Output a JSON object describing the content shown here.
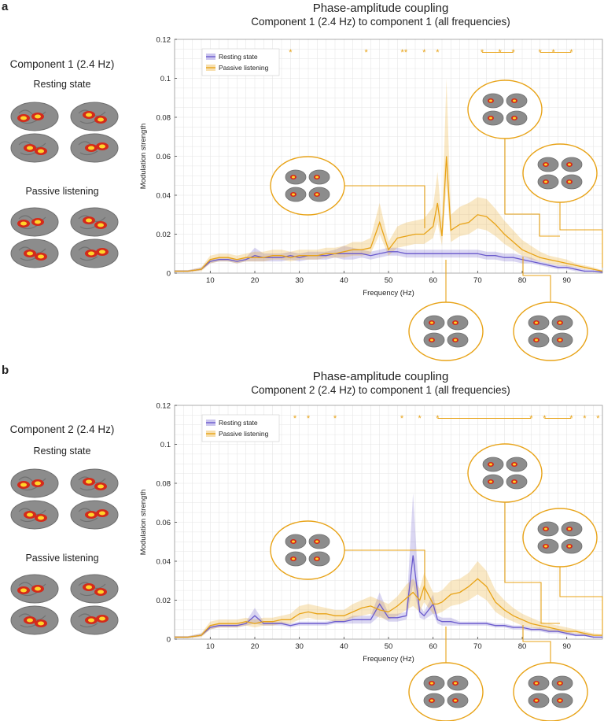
{
  "colors": {
    "resting": "#6a5acd",
    "passive": "#e8a317",
    "grid": "#e6e6e6"
  },
  "panels": [
    {
      "label": "a",
      "title": "Phase-amplitude coupling",
      "subtitle": "Component 1 (2.4 Hz) to component 1 (all frequencies)",
      "component_label": "Component 1 (2.4 Hz)",
      "cond_rest": "Resting state",
      "cond_passive": "Passive listening",
      "stars_text": [
        "*",
        "*",
        "*",
        "**",
        "*",
        "*",
        "*",
        "*",
        "*",
        "*",
        "*",
        "*"
      ]
    },
    {
      "label": "b",
      "title": "Phase-amplitude coupling",
      "subtitle": "Component 2 (2.4 Hz) to component 1 (all frequencies)",
      "component_label": "Component 2 (2.4 Hz)",
      "cond_rest": "Resting state",
      "cond_passive": "Passive listening",
      "stars_text": [
        "*",
        "*",
        "*",
        "*",
        "*",
        "*",
        "*",
        "*",
        "*",
        "*",
        "*"
      ]
    }
  ],
  "chart_data": [
    {
      "type": "line",
      "title": "Phase-amplitude coupling",
      "subtitle": "Component 1 (2.4 Hz) to component 1 (all frequencies)",
      "xlabel": "Frequency (Hz)",
      "ylabel": "Modulation strength",
      "xlim": [
        2,
        98
      ],
      "ylim": [
        0,
        0.12
      ],
      "xticks": [
        10,
        20,
        30,
        40,
        50,
        60,
        70,
        80,
        90
      ],
      "yticks": [
        0,
        0.02,
        0.04,
        0.06,
        0.08,
        0.1,
        0.12
      ],
      "ytick_labels": [
        "0",
        "0.02",
        "0.04",
        "0.06",
        "0.08",
        "0.1",
        "0.12"
      ],
      "grid": true,
      "legend": "top-left",
      "x": [
        2,
        5,
        8,
        10,
        12,
        14,
        16,
        18,
        20,
        22,
        24,
        26,
        28,
        30,
        32,
        34,
        36,
        38,
        40,
        42,
        44,
        46,
        48,
        50,
        52,
        54,
        56,
        58,
        60,
        61,
        62,
        63,
        64,
        66,
        68,
        70,
        72,
        74,
        76,
        78,
        80,
        82,
        84,
        86,
        88,
        90,
        92,
        94,
        96,
        98
      ],
      "series": [
        {
          "name": "Resting state",
          "values": [
            0.001,
            0.001,
            0.002,
            0.006,
            0.007,
            0.007,
            0.006,
            0.007,
            0.009,
            0.008,
            0.008,
            0.008,
            0.009,
            0.008,
            0.009,
            0.009,
            0.009,
            0.01,
            0.01,
            0.01,
            0.01,
            0.009,
            0.01,
            0.011,
            0.011,
            0.01,
            0.01,
            0.01,
            0.01,
            0.01,
            0.01,
            0.01,
            0.01,
            0.01,
            0.01,
            0.01,
            0.009,
            0.009,
            0.008,
            0.008,
            0.007,
            0.006,
            0.005,
            0.004,
            0.003,
            0.003,
            0.002,
            0.001,
            0.001,
            0.0005
          ],
          "lower": [
            0.0005,
            0.0005,
            0.0015,
            0.005,
            0.006,
            0.006,
            0.005,
            0.006,
            0.006,
            0.006,
            0.006,
            0.006,
            0.007,
            0.006,
            0.007,
            0.007,
            0.007,
            0.008,
            0.007,
            0.007,
            0.008,
            0.007,
            0.008,
            0.009,
            0.009,
            0.008,
            0.008,
            0.008,
            0.008,
            0.008,
            0.008,
            0.008,
            0.008,
            0.008,
            0.008,
            0.008,
            0.007,
            0.007,
            0.006,
            0.006,
            0.005,
            0.005,
            0.004,
            0.003,
            0.002,
            0.002,
            0.001,
            0.0005,
            0.0005,
            0.0002
          ],
          "upper": [
            0.0015,
            0.0015,
            0.003,
            0.007,
            0.008,
            0.008,
            0.007,
            0.008,
            0.013,
            0.01,
            0.01,
            0.01,
            0.011,
            0.01,
            0.011,
            0.011,
            0.011,
            0.012,
            0.014,
            0.013,
            0.012,
            0.011,
            0.012,
            0.013,
            0.013,
            0.012,
            0.012,
            0.012,
            0.012,
            0.012,
            0.012,
            0.012,
            0.012,
            0.012,
            0.012,
            0.012,
            0.011,
            0.011,
            0.01,
            0.01,
            0.009,
            0.008,
            0.006,
            0.005,
            0.004,
            0.004,
            0.003,
            0.002,
            0.0015,
            0.0008
          ]
        },
        {
          "name": "Passive listening",
          "values": [
            0.001,
            0.001,
            0.002,
            0.007,
            0.008,
            0.008,
            0.007,
            0.008,
            0.008,
            0.008,
            0.009,
            0.009,
            0.008,
            0.009,
            0.009,
            0.009,
            0.01,
            0.01,
            0.011,
            0.012,
            0.012,
            0.013,
            0.026,
            0.012,
            0.018,
            0.019,
            0.02,
            0.02,
            0.024,
            0.036,
            0.019,
            0.06,
            0.022,
            0.025,
            0.026,
            0.03,
            0.029,
            0.025,
            0.02,
            0.016,
            0.012,
            0.01,
            0.008,
            0.007,
            0.006,
            0.005,
            0.004,
            0.003,
            0.002,
            0.001
          ],
          "lower": [
            0.0005,
            0.0005,
            0.001,
            0.005,
            0.006,
            0.006,
            0.005,
            0.006,
            0.006,
            0.006,
            0.007,
            0.007,
            0.006,
            0.007,
            0.007,
            0.007,
            0.008,
            0.008,
            0.008,
            0.009,
            0.009,
            0.01,
            0.02,
            0.009,
            0.013,
            0.014,
            0.015,
            0.015,
            0.018,
            0.026,
            0.014,
            0.045,
            0.016,
            0.019,
            0.02,
            0.023,
            0.022,
            0.019,
            0.015,
            0.012,
            0.009,
            0.007,
            0.006,
            0.005,
            0.004,
            0.0035,
            0.003,
            0.002,
            0.0015,
            0.0007
          ],
          "upper": [
            0.0015,
            0.0015,
            0.003,
            0.009,
            0.01,
            0.01,
            0.009,
            0.01,
            0.011,
            0.011,
            0.012,
            0.012,
            0.011,
            0.012,
            0.012,
            0.012,
            0.013,
            0.013,
            0.014,
            0.016,
            0.016,
            0.018,
            0.036,
            0.016,
            0.024,
            0.026,
            0.027,
            0.028,
            0.034,
            0.052,
            0.026,
            0.1,
            0.03,
            0.034,
            0.036,
            0.039,
            0.038,
            0.033,
            0.027,
            0.022,
            0.017,
            0.014,
            0.011,
            0.009,
            0.008,
            0.007,
            0.005,
            0.004,
            0.003,
            0.0015
          ]
        }
      ],
      "significance_stars_x": [
        23,
        28,
        45,
        53.5,
        58,
        61,
        71,
        75,
        78,
        84,
        87,
        91
      ]
    },
    {
      "type": "line",
      "title": "Phase-amplitude coupling",
      "subtitle": "Component 2 (2.4 Hz) to component 1 (all frequencies)",
      "xlabel": "Frequency (Hz)",
      "ylabel": "Modulation strength",
      "xlim": [
        2,
        98
      ],
      "ylim": [
        0,
        0.12
      ],
      "xticks": [
        10,
        20,
        30,
        40,
        50,
        60,
        70,
        80,
        90
      ],
      "yticks": [
        0,
        0.02,
        0.04,
        0.06,
        0.08,
        0.1,
        0.12
      ],
      "ytick_labels": [
        "0",
        "0.02",
        "0.04",
        "0.06",
        "0.08",
        "0.1",
        "0.12"
      ],
      "grid": true,
      "legend": "top-left",
      "x": [
        2,
        5,
        8,
        10,
        12,
        14,
        16,
        18,
        20,
        22,
        24,
        26,
        28,
        30,
        32,
        34,
        36,
        38,
        40,
        42,
        44,
        46,
        48,
        50,
        52,
        54,
        55.5,
        57,
        58,
        60,
        61,
        62,
        64,
        66,
        68,
        70,
        72,
        74,
        76,
        78,
        80,
        82,
        84,
        86,
        88,
        90,
        92,
        94,
        96,
        98
      ],
      "series": [
        {
          "name": "Resting state",
          "values": [
            0.001,
            0.001,
            0.002,
            0.006,
            0.007,
            0.007,
            0.007,
            0.008,
            0.012,
            0.008,
            0.008,
            0.008,
            0.007,
            0.008,
            0.008,
            0.008,
            0.008,
            0.009,
            0.009,
            0.01,
            0.01,
            0.01,
            0.018,
            0.011,
            0.011,
            0.012,
            0.043,
            0.014,
            0.012,
            0.018,
            0.01,
            0.009,
            0.009,
            0.008,
            0.008,
            0.008,
            0.008,
            0.007,
            0.007,
            0.006,
            0.006,
            0.005,
            0.005,
            0.004,
            0.004,
            0.003,
            0.002,
            0.002,
            0.001,
            0.001
          ],
          "lower": [
            0.0005,
            0.0005,
            0.0015,
            0.005,
            0.006,
            0.006,
            0.006,
            0.007,
            0.008,
            0.007,
            0.007,
            0.007,
            0.006,
            0.007,
            0.007,
            0.007,
            0.007,
            0.008,
            0.008,
            0.008,
            0.008,
            0.008,
            0.012,
            0.009,
            0.009,
            0.01,
            0.028,
            0.011,
            0.01,
            0.013,
            0.008,
            0.007,
            0.007,
            0.007,
            0.007,
            0.007,
            0.007,
            0.006,
            0.006,
            0.005,
            0.005,
            0.004,
            0.004,
            0.003,
            0.003,
            0.002,
            0.0015,
            0.0015,
            0.0007,
            0.0007
          ],
          "upper": [
            0.0015,
            0.0015,
            0.003,
            0.007,
            0.008,
            0.008,
            0.008,
            0.009,
            0.016,
            0.009,
            0.009,
            0.009,
            0.008,
            0.009,
            0.009,
            0.009,
            0.009,
            0.01,
            0.01,
            0.012,
            0.012,
            0.012,
            0.024,
            0.013,
            0.013,
            0.014,
            0.075,
            0.017,
            0.014,
            0.023,
            0.012,
            0.011,
            0.011,
            0.009,
            0.009,
            0.009,
            0.009,
            0.008,
            0.008,
            0.007,
            0.007,
            0.006,
            0.006,
            0.005,
            0.005,
            0.004,
            0.003,
            0.003,
            0.0015,
            0.0015
          ]
        },
        {
          "name": "Passive listening",
          "values": [
            0.001,
            0.001,
            0.002,
            0.007,
            0.008,
            0.008,
            0.008,
            0.009,
            0.008,
            0.009,
            0.009,
            0.01,
            0.01,
            0.013,
            0.014,
            0.013,
            0.013,
            0.012,
            0.012,
            0.014,
            0.016,
            0.017,
            0.015,
            0.014,
            0.017,
            0.021,
            0.024,
            0.02,
            0.027,
            0.018,
            0.018,
            0.019,
            0.023,
            0.024,
            0.027,
            0.031,
            0.027,
            0.019,
            0.015,
            0.012,
            0.01,
            0.008,
            0.007,
            0.006,
            0.005,
            0.004,
            0.004,
            0.003,
            0.002,
            0.002
          ],
          "lower": [
            0.0005,
            0.0005,
            0.001,
            0.005,
            0.006,
            0.006,
            0.006,
            0.007,
            0.006,
            0.007,
            0.007,
            0.008,
            0.008,
            0.01,
            0.011,
            0.01,
            0.01,
            0.009,
            0.009,
            0.011,
            0.012,
            0.013,
            0.011,
            0.01,
            0.012,
            0.015,
            0.017,
            0.014,
            0.019,
            0.013,
            0.013,
            0.014,
            0.017,
            0.018,
            0.02,
            0.023,
            0.02,
            0.014,
            0.011,
            0.009,
            0.007,
            0.006,
            0.005,
            0.004,
            0.004,
            0.003,
            0.003,
            0.002,
            0.0015,
            0.0015
          ],
          "upper": [
            0.0015,
            0.0015,
            0.003,
            0.009,
            0.01,
            0.01,
            0.01,
            0.011,
            0.01,
            0.011,
            0.011,
            0.012,
            0.013,
            0.017,
            0.018,
            0.017,
            0.016,
            0.015,
            0.015,
            0.018,
            0.02,
            0.022,
            0.02,
            0.018,
            0.022,
            0.028,
            0.031,
            0.026,
            0.034,
            0.024,
            0.024,
            0.025,
            0.03,
            0.031,
            0.034,
            0.04,
            0.035,
            0.025,
            0.02,
            0.016,
            0.013,
            0.011,
            0.009,
            0.008,
            0.007,
            0.006,
            0.005,
            0.004,
            0.003,
            0.0025
          ]
        }
      ],
      "significance_stars_x": [
        29,
        32,
        38,
        53,
        57,
        61,
        82,
        85,
        91,
        94,
        97
      ]
    }
  ]
}
